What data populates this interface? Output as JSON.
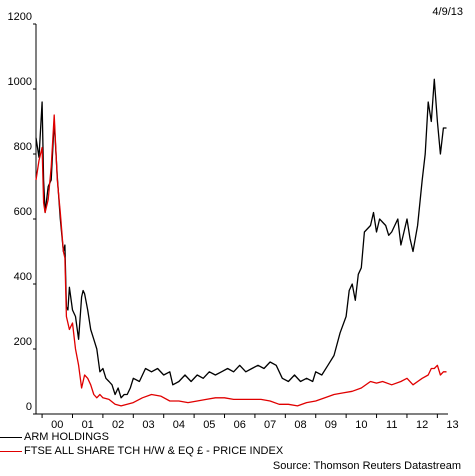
{
  "date_label": "4/9/13",
  "source": "Source: Thomson Reuters Datastream",
  "chart_data": {
    "type": "line",
    "x_tick_labels": [
      "00",
      "01",
      "02",
      "03",
      "04",
      "05",
      "06",
      "07",
      "08",
      "09",
      "10",
      "11",
      "12",
      "13"
    ],
    "y_ticks": [
      0,
      200,
      400,
      600,
      800,
      1000,
      1200
    ],
    "ylim": [
      0,
      1200
    ],
    "xlim": [
      1999.8,
      2013.35
    ],
    "grid": false,
    "legend_position": "bottom-left",
    "series": [
      {
        "name": "ARM HOLDINGS",
        "color": "#000000",
        "points": [
          [
            1999.8,
            850
          ],
          [
            1999.9,
            790
          ],
          [
            2000.0,
            960
          ],
          [
            2000.05,
            720
          ],
          [
            2000.1,
            620
          ],
          [
            2000.2,
            700
          ],
          [
            2000.3,
            720
          ],
          [
            2000.4,
            900
          ],
          [
            2000.5,
            730
          ],
          [
            2000.6,
            600
          ],
          [
            2000.7,
            500
          ],
          [
            2000.75,
            520
          ],
          [
            2000.8,
            330
          ],
          [
            2000.85,
            320
          ],
          [
            2000.9,
            390
          ],
          [
            2001.0,
            320
          ],
          [
            2001.1,
            300
          ],
          [
            2001.2,
            230
          ],
          [
            2001.3,
            360
          ],
          [
            2001.35,
            380
          ],
          [
            2001.4,
            370
          ],
          [
            2001.5,
            320
          ],
          [
            2001.6,
            260
          ],
          [
            2001.7,
            230
          ],
          [
            2001.8,
            200
          ],
          [
            2001.9,
            130
          ],
          [
            2002.0,
            140
          ],
          [
            2002.1,
            110
          ],
          [
            2002.2,
            100
          ],
          [
            2002.3,
            90
          ],
          [
            2002.4,
            60
          ],
          [
            2002.5,
            80
          ],
          [
            2002.6,
            50
          ],
          [
            2002.7,
            60
          ],
          [
            2002.8,
            60
          ],
          [
            2002.9,
            80
          ],
          [
            2003.0,
            110
          ],
          [
            2003.2,
            100
          ],
          [
            2003.4,
            140
          ],
          [
            2003.6,
            130
          ],
          [
            2003.8,
            140
          ],
          [
            2004.0,
            120
          ],
          [
            2004.2,
            130
          ],
          [
            2004.3,
            90
          ],
          [
            2004.5,
            100
          ],
          [
            2004.7,
            120
          ],
          [
            2004.9,
            100
          ],
          [
            2005.1,
            120
          ],
          [
            2005.3,
            110
          ],
          [
            2005.5,
            130
          ],
          [
            2005.7,
            120
          ],
          [
            2005.9,
            130
          ],
          [
            2006.1,
            140
          ],
          [
            2006.3,
            130
          ],
          [
            2006.5,
            150
          ],
          [
            2006.7,
            130
          ],
          [
            2006.9,
            140
          ],
          [
            2007.1,
            150
          ],
          [
            2007.3,
            140
          ],
          [
            2007.5,
            160
          ],
          [
            2007.7,
            150
          ],
          [
            2007.9,
            110
          ],
          [
            2008.1,
            100
          ],
          [
            2008.3,
            120
          ],
          [
            2008.5,
            100
          ],
          [
            2008.7,
            110
          ],
          [
            2008.9,
            100
          ],
          [
            2009.0,
            130
          ],
          [
            2009.2,
            120
          ],
          [
            2009.4,
            150
          ],
          [
            2009.6,
            180
          ],
          [
            2009.8,
            250
          ],
          [
            2010.0,
            300
          ],
          [
            2010.1,
            380
          ],
          [
            2010.2,
            400
          ],
          [
            2010.3,
            350
          ],
          [
            2010.4,
            430
          ],
          [
            2010.5,
            450
          ],
          [
            2010.6,
            560
          ],
          [
            2010.8,
            580
          ],
          [
            2010.9,
            620
          ],
          [
            2011.0,
            560
          ],
          [
            2011.1,
            600
          ],
          [
            2011.3,
            580
          ],
          [
            2011.4,
            550
          ],
          [
            2011.5,
            560
          ],
          [
            2011.7,
            600
          ],
          [
            2011.8,
            520
          ],
          [
            2012.0,
            600
          ],
          [
            2012.1,
            540
          ],
          [
            2012.2,
            500
          ],
          [
            2012.35,
            580
          ],
          [
            2012.5,
            720
          ],
          [
            2012.6,
            800
          ],
          [
            2012.7,
            960
          ],
          [
            2012.8,
            900
          ],
          [
            2012.9,
            1030
          ],
          [
            2013.0,
            900
          ],
          [
            2013.1,
            800
          ],
          [
            2013.2,
            880
          ],
          [
            2013.3,
            880
          ]
        ]
      },
      {
        "name": "FTSE ALL SHARE TCH H/W & EQ £ - PRICE INDEX",
        "color": "#e00000",
        "points": [
          [
            1999.8,
            720
          ],
          [
            1999.9,
            780
          ],
          [
            2000.0,
            820
          ],
          [
            2000.05,
            650
          ],
          [
            2000.1,
            620
          ],
          [
            2000.2,
            660
          ],
          [
            2000.3,
            760
          ],
          [
            2000.4,
            920
          ],
          [
            2000.5,
            720
          ],
          [
            2000.6,
            620
          ],
          [
            2000.7,
            500
          ],
          [
            2000.75,
            480
          ],
          [
            2000.8,
            300
          ],
          [
            2000.9,
            260
          ],
          [
            2001.0,
            280
          ],
          [
            2001.1,
            200
          ],
          [
            2001.2,
            150
          ],
          [
            2001.3,
            80
          ],
          [
            2001.4,
            120
          ],
          [
            2001.5,
            110
          ],
          [
            2001.6,
            90
          ],
          [
            2001.7,
            60
          ],
          [
            2001.8,
            50
          ],
          [
            2001.9,
            60
          ],
          [
            2002.0,
            50
          ],
          [
            2002.2,
            45
          ],
          [
            2002.4,
            30
          ],
          [
            2002.6,
            25
          ],
          [
            2002.8,
            30
          ],
          [
            2003.0,
            35
          ],
          [
            2003.3,
            50
          ],
          [
            2003.6,
            60
          ],
          [
            2003.9,
            55
          ],
          [
            2004.2,
            40
          ],
          [
            2004.5,
            40
          ],
          [
            2004.8,
            35
          ],
          [
            2005.1,
            40
          ],
          [
            2005.4,
            45
          ],
          [
            2005.7,
            50
          ],
          [
            2006.0,
            50
          ],
          [
            2006.3,
            45
          ],
          [
            2006.6,
            45
          ],
          [
            2006.9,
            45
          ],
          [
            2007.2,
            45
          ],
          [
            2007.5,
            40
          ],
          [
            2007.8,
            30
          ],
          [
            2008.1,
            30
          ],
          [
            2008.4,
            25
          ],
          [
            2008.7,
            35
          ],
          [
            2009.0,
            40
          ],
          [
            2009.3,
            50
          ],
          [
            2009.6,
            60
          ],
          [
            2009.9,
            65
          ],
          [
            2010.2,
            70
          ],
          [
            2010.5,
            80
          ],
          [
            2010.8,
            100
          ],
          [
            2011.0,
            95
          ],
          [
            2011.2,
            100
          ],
          [
            2011.5,
            90
          ],
          [
            2011.8,
            100
          ],
          [
            2012.0,
            110
          ],
          [
            2012.2,
            90
          ],
          [
            2012.5,
            110
          ],
          [
            2012.7,
            120
          ],
          [
            2012.8,
            140
          ],
          [
            2012.9,
            140
          ],
          [
            2013.0,
            150
          ],
          [
            2013.1,
            120
          ],
          [
            2013.2,
            130
          ],
          [
            2013.3,
            130
          ]
        ]
      }
    ]
  }
}
